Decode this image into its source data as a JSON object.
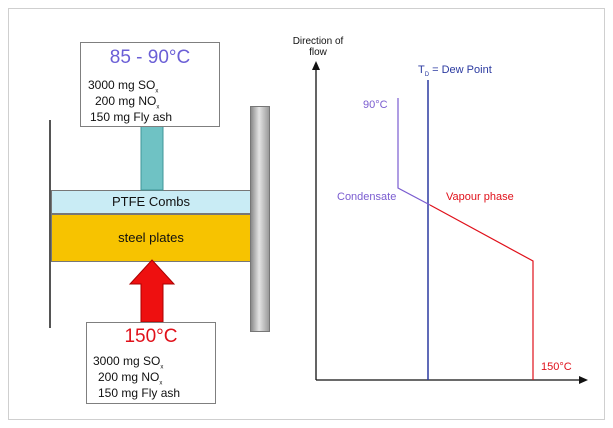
{
  "left_diagram": {
    "top_box": {
      "temperature": "85 - 90°C",
      "lines": [
        {
          "prefix": "3000 mg SO",
          "sub": "x"
        },
        {
          "prefix": "200 mg NO",
          "sub": "x"
        },
        {
          "prefix": "150 mg Fly ash",
          "sub": ""
        }
      ]
    },
    "bottom_box": {
      "temperature": "150°C",
      "lines": [
        {
          "prefix": "3000 mg SO",
          "sub": "x"
        },
        {
          "prefix": "200 mg NO",
          "sub": "x"
        },
        {
          "prefix": "150 mg Fly ash",
          "sub": ""
        }
      ]
    },
    "ptfe_label": "PTFE Combs",
    "steel_label": "steel plates"
  },
  "right_diagram": {
    "axis_label_line1": "Direction of",
    "axis_label_line2": "flow",
    "dew_point_prefix": "T",
    "dew_point_sub": "D",
    "dew_point_suffix": " = Dew Point",
    "temp_top": "90°C",
    "temp_bottom": "150°C",
    "condensate_label": "Condensate",
    "vapour_label": "Vapour phase"
  },
  "colors": {
    "temp_top": "#6b5fd6",
    "temp_bottom": "#e0101a",
    "ptfe": "#c9ecf5",
    "steel": "#f7c300",
    "arrow_top": "#6fc2c4",
    "arrow_bottom": "#ee1010",
    "dew_line": "#2b3aa0",
    "condensate": "#7a5cd0",
    "vapour": "#e0101a"
  }
}
